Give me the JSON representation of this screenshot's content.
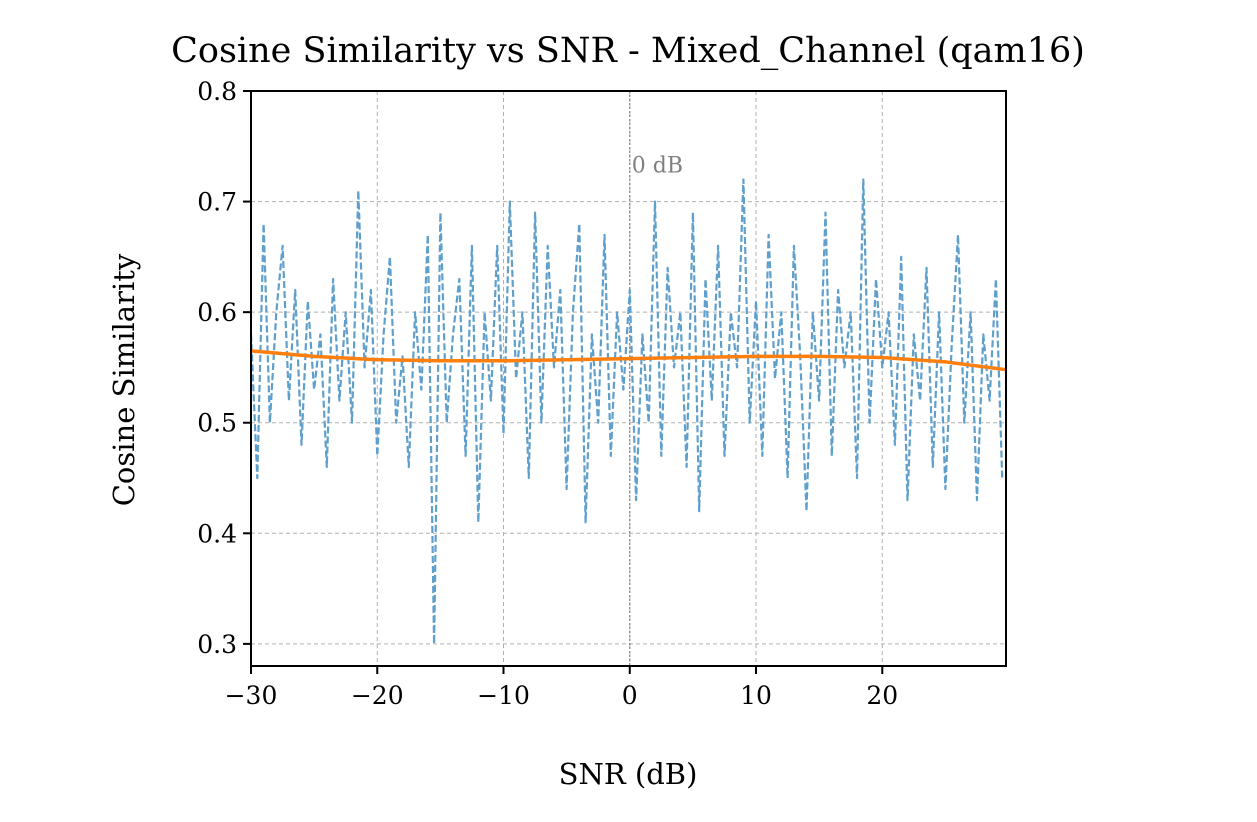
{
  "chart_data": {
    "type": "line",
    "title": "Cosine Similarity vs SNR - Mixed_Channel (qam16)",
    "xlabel": "SNR (dB)",
    "ylabel": "Cosine Similarity",
    "xlim": [
      -30,
      29.8
    ],
    "ylim": [
      0.28,
      0.8
    ],
    "grid": true,
    "x_ticks": [
      -30,
      -20,
      -10,
      0,
      10,
      20
    ],
    "x_tick_labels": [
      "−30",
      "−20",
      "−10",
      "0",
      "10",
      "20"
    ],
    "y_ticks": [
      0.3,
      0.4,
      0.5,
      0.6,
      0.7,
      0.8
    ],
    "y_tick_labels": [
      "0.3",
      "0.4",
      "0.5",
      "0.6",
      "0.7",
      "0.8"
    ],
    "annotation": {
      "text": "0 dB",
      "x": 0,
      "y": 0.74
    },
    "reference_line": {
      "x": 0,
      "color": "#808080"
    },
    "series": [
      {
        "style": "dashed",
        "color": "#5f9fcc",
        "x": [
          -30,
          -29.5,
          -29,
          -28.5,
          -28,
          -27.5,
          -27,
          -26.5,
          -26,
          -25.5,
          -25,
          -24.5,
          -24,
          -23.5,
          -23,
          -22.5,
          -22,
          -21.5,
          -21,
          -20.5,
          -20,
          -19.5,
          -19,
          -18.5,
          -18,
          -17.5,
          -17,
          -16.5,
          -16,
          -15.5,
          -15,
          -14.5,
          -14,
          -13.5,
          -13,
          -12.5,
          -12,
          -11.5,
          -11,
          -10.5,
          -10,
          -9.5,
          -9,
          -8.5,
          -8,
          -7.5,
          -7,
          -6.5,
          -6,
          -5.5,
          -5,
          -4.5,
          -4,
          -3.5,
          -3,
          -2.5,
          -2,
          -1.5,
          -1,
          -0.5,
          0,
          0.5,
          1,
          1.5,
          2,
          2.5,
          3,
          3.5,
          4,
          4.5,
          5,
          5.5,
          6,
          6.5,
          7,
          7.5,
          8,
          8.5,
          9,
          9.5,
          10,
          10.5,
          11,
          11.5,
          12,
          12.5,
          13,
          13.5,
          14,
          14.5,
          15,
          15.5,
          16,
          16.5,
          17,
          17.5,
          18,
          18.5,
          19,
          19.5,
          20,
          20.5,
          21,
          21.5,
          22,
          22.5,
          23,
          23.5,
          24,
          24.5,
          25,
          25.5,
          26,
          26.5,
          27,
          27.5,
          28,
          28.5,
          29,
          29.5
        ],
        "y": [
          0.58,
          0.45,
          0.68,
          0.5,
          0.6,
          0.66,
          0.52,
          0.62,
          0.48,
          0.61,
          0.53,
          0.58,
          0.46,
          0.63,
          0.52,
          0.6,
          0.5,
          0.71,
          0.55,
          0.62,
          0.47,
          0.58,
          0.65,
          0.5,
          0.56,
          0.46,
          0.6,
          0.53,
          0.67,
          0.3,
          0.69,
          0.5,
          0.58,
          0.63,
          0.47,
          0.66,
          0.41,
          0.6,
          0.52,
          0.66,
          0.49,
          0.7,
          0.54,
          0.6,
          0.45,
          0.69,
          0.5,
          0.66,
          0.55,
          0.62,
          0.44,
          0.6,
          0.68,
          0.41,
          0.58,
          0.5,
          0.67,
          0.47,
          0.6,
          0.53,
          0.62,
          0.43,
          0.58,
          0.5,
          0.7,
          0.47,
          0.64,
          0.55,
          0.6,
          0.46,
          0.69,
          0.42,
          0.63,
          0.52,
          0.66,
          0.47,
          0.6,
          0.55,
          0.72,
          0.5,
          0.61,
          0.47,
          0.67,
          0.54,
          0.6,
          0.45,
          0.66,
          0.56,
          0.42,
          0.6,
          0.52,
          0.69,
          0.47,
          0.62,
          0.55,
          0.6,
          0.45,
          0.72,
          0.5,
          0.63,
          0.55,
          0.6,
          0.48,
          0.65,
          0.43,
          0.58,
          0.52,
          0.64,
          0.46,
          0.6,
          0.44,
          0.57,
          0.67,
          0.5,
          0.6,
          0.43,
          0.58,
          0.52,
          0.63,
          0.45
        ]
      },
      {
        "style": "solid",
        "color": "#ff7f0e",
        "x": [
          -30,
          -25,
          -20,
          -15,
          -10,
          -5,
          0,
          5,
          10,
          15,
          20,
          25,
          29.8
        ],
        "y": [
          0.565,
          0.56,
          0.557,
          0.556,
          0.556,
          0.557,
          0.558,
          0.559,
          0.56,
          0.56,
          0.559,
          0.555,
          0.548
        ]
      }
    ]
  }
}
